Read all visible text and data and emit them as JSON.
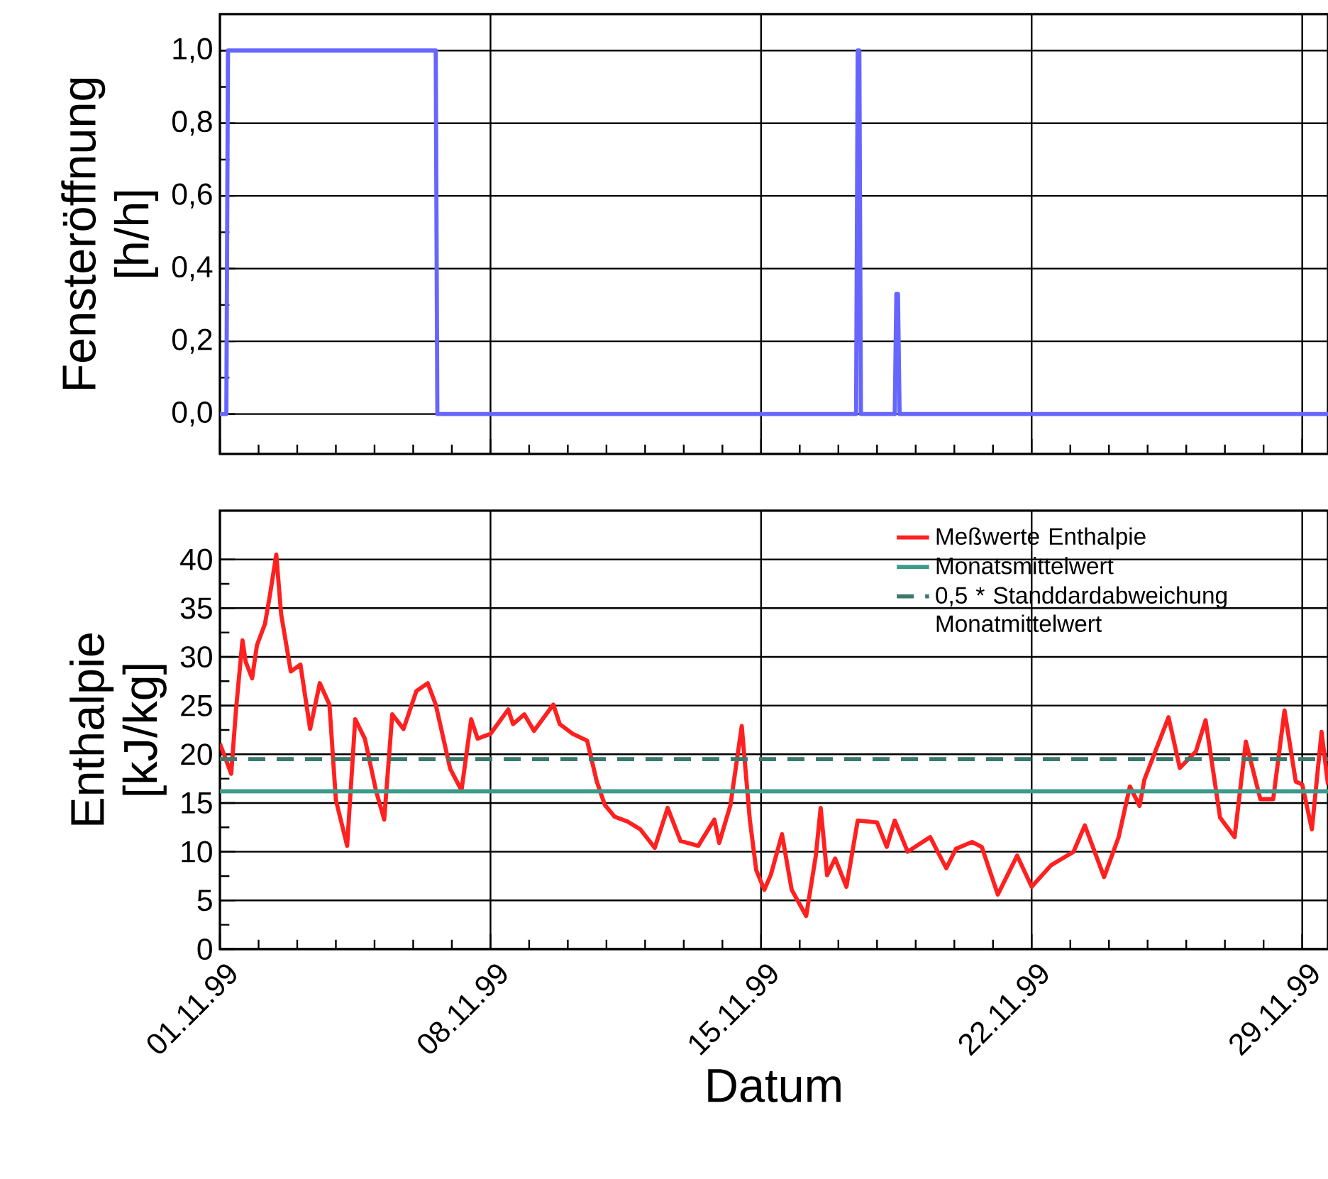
{
  "chart_data": [
    {
      "type": "line",
      "ylabel": "Fensteröffnung [h/h]",
      "x": [
        "1999-11-01T00:00",
        "1999-11-01T04:00",
        "1999-11-01T05:00",
        "1999-11-06T14:00",
        "1999-11-06T15:00",
        "1999-11-17T11:00",
        "1999-11-17T12:00",
        "1999-11-17T13:00",
        "1999-11-17T14:00",
        "1999-11-18T11:00",
        "1999-11-18T12:00",
        "1999-11-18T13:00",
        "1999-11-18T14:00",
        "1999-11-29T16:00"
      ],
      "series": [
        {
          "color": "#6666ff",
          "values": [
            0,
            0,
            1,
            1,
            0,
            0,
            1,
            1,
            0,
            0,
            0.33,
            0.33,
            0,
            0
          ]
        }
      ],
      "xlim": [
        "1999-11-01",
        "1999-11-29T16:00"
      ],
      "xticks": [
        "1999-11-01",
        "1999-11-08",
        "1999-11-15",
        "1999-11-22",
        "1999-11-29"
      ],
      "ylim": [
        -0.11,
        1.1
      ],
      "yticks": [
        {
          "value": 0,
          "label": "0,0"
        },
        {
          "value": 0.2,
          "label": "0,2"
        },
        {
          "value": 0.4,
          "label": "0,4"
        },
        {
          "value": 0.6,
          "label": "0,6"
        },
        {
          "value": 0.8,
          "label": "0,8"
        },
        {
          "value": 1,
          "label": "1,0"
        }
      ],
      "grid": true,
      "tick_labels": "y",
      "line_style": "solid",
      "marker": "none"
    },
    {
      "type": "line",
      "xlabel": "Datum",
      "ylabel": "Enthalpie [kJ/kg]",
      "x": [
        "1999-11-01T00:00",
        "1999-11-01T07:00",
        "1999-11-01T10:00",
        "1999-11-01T14:00",
        "1999-11-01T16:00",
        "1999-11-01T20:00",
        "1999-11-01T23:00",
        "1999-11-02T04:00",
        "1999-11-02T07:00",
        "1999-11-02T11:00",
        "1999-11-02T14:00",
        "1999-11-02T20:00",
        "1999-11-03T02:00",
        "1999-11-03T08:00",
        "1999-11-03T14:00",
        "1999-11-03T20:00",
        "1999-11-04T00:00",
        "1999-11-04T07:00",
        "1999-11-04T12:00",
        "1999-11-04T18:00",
        "1999-11-05T01:00",
        "1999-11-05T06:00",
        "1999-11-05T11:00",
        "1999-11-05T18:00",
        "1999-11-06T02:00",
        "1999-11-06T09:00",
        "1999-11-06T14:00",
        "1999-11-06T23:00",
        "1999-11-07T06:00",
        "1999-11-07T12:00",
        "1999-11-07T16:00",
        "1999-11-08T00:00",
        "1999-11-08T11:00",
        "1999-11-08T14:00",
        "1999-11-08T21:00",
        "1999-11-09T03:00",
        "1999-11-09T15:00",
        "1999-11-09T19:00",
        "1999-11-10T03:00",
        "1999-11-10T12:00",
        "1999-11-10T18:00",
        "1999-11-10T23:00",
        "1999-11-11T05:00",
        "1999-11-11T13:00",
        "1999-11-11T21:00",
        "1999-11-12T06:00",
        "1999-11-12T14:00",
        "1999-11-12T22:00",
        "1999-11-13T09:00",
        "1999-11-13T19:00",
        "1999-11-13T22:00",
        "1999-11-14T05:00",
        "1999-11-14T12:00",
        "1999-11-14T17:00",
        "1999-11-14T21:00",
        "1999-11-15T02:00",
        "1999-11-15T06:00",
        "1999-11-15T13:00",
        "1999-11-15T19:00",
        "1999-11-16T04:00",
        "1999-11-16T10:00",
        "1999-11-16T13:00",
        "1999-11-16T17:00",
        "1999-11-16T22:00",
        "1999-11-17T05:00",
        "1999-11-17T12:00",
        "1999-11-18T00:00",
        "1999-11-18T06:00",
        "1999-11-18T11:00",
        "1999-11-18T19:00",
        "1999-11-19T09:00",
        "1999-11-19T19:00",
        "1999-11-20T01:00",
        "1999-11-20T11:00",
        "1999-11-20T17:00",
        "1999-11-21T03:00",
        "1999-11-21T15:00",
        "1999-11-22T00:00",
        "1999-11-22T12:00",
        "1999-11-23T02:00",
        "1999-11-23T09:00",
        "1999-11-23T21:00",
        "1999-11-24T06:00",
        "1999-11-24T13:00",
        "1999-11-24T19:00",
        "1999-11-24T22:00",
        "1999-11-25T13:00",
        "1999-11-25T20:00",
        "1999-11-26T06:00",
        "1999-11-26T12:00",
        "1999-11-26T21:00",
        "1999-11-27T06:00",
        "1999-11-27T13:00",
        "1999-11-27T22:00",
        "1999-11-28T06:00",
        "1999-11-28T13:00",
        "1999-11-28T20:00",
        "1999-11-29T00:00",
        "1999-11-29T06:00",
        "1999-11-29T12:00",
        "1999-11-29T16:00"
      ],
      "series": [
        {
          "name": "Meßwerte Enthalpie",
          "color": "#ff2020",
          "values": [
            21.1,
            18.0,
            24.6,
            31.7,
            29.5,
            27.8,
            31.2,
            33.4,
            36.3,
            40.5,
            34.4,
            28.5,
            29.2,
            22.6,
            27.3,
            25.1,
            15.3,
            10.6,
            23.6,
            21.6,
            16.2,
            13.3,
            24.1,
            22.6,
            26.5,
            27.3,
            25.1,
            18.5,
            16.3,
            23.6,
            21.6,
            22.1,
            24.6,
            23.1,
            24.1,
            22.4,
            25.1,
            23.1,
            22.1,
            21.4,
            17.2,
            14.8,
            13.6,
            13.1,
            12.3,
            10.4,
            14.5,
            11.1,
            10.6,
            13.3,
            10.9,
            14.8,
            22.9,
            13.3,
            8.1,
            6.1,
            7.6,
            11.8,
            6.1,
            3.4,
            9.6,
            14.5,
            7.6,
            9.3,
            6.4,
            13.2,
            13.0,
            10.5,
            13.2,
            10.0,
            11.5,
            8.3,
            10.3,
            11.0,
            10.5,
            5.6,
            9.6,
            6.4,
            8.6,
            10.0,
            12.7,
            7.4,
            11.5,
            16.7,
            14.7,
            17.4,
            23.8,
            18.6,
            20.3,
            23.5,
            13.5,
            11.5,
            21.3,
            15.4,
            15.4,
            24.5,
            17.2,
            16.9,
            12.3,
            22.3,
            16.9
          ]
        }
      ],
      "ref_lines": [
        {
          "axis": "y",
          "value": 16.2,
          "label": "Monatsmittelwert",
          "color": "#3d9a8b",
          "line_style": "solid"
        },
        {
          "axis": "y",
          "value": 19.5,
          "label": "0,5 * Standdardabweichung Monatmittelwert",
          "color": "#3d7a6e",
          "line_style": "dashed"
        }
      ],
      "xlim": [
        "1999-11-01",
        "1999-11-29T16:00"
      ],
      "xticks": [
        {
          "value": "1999-11-01",
          "label": "01.11.99"
        },
        {
          "value": "1999-11-08",
          "label": "08.11.99"
        },
        {
          "value": "1999-11-15",
          "label": "15.11.99"
        },
        {
          "value": "1999-11-22",
          "label": "22.11.99"
        },
        {
          "value": "1999-11-29",
          "label": "29.11.99"
        }
      ],
      "ylim": [
        0,
        45
      ],
      "yticks": [
        0,
        5,
        10,
        15,
        20,
        25,
        30,
        35,
        40
      ],
      "grid": true,
      "legend": "top right",
      "line_style": "solid",
      "marker": "none"
    }
  ]
}
